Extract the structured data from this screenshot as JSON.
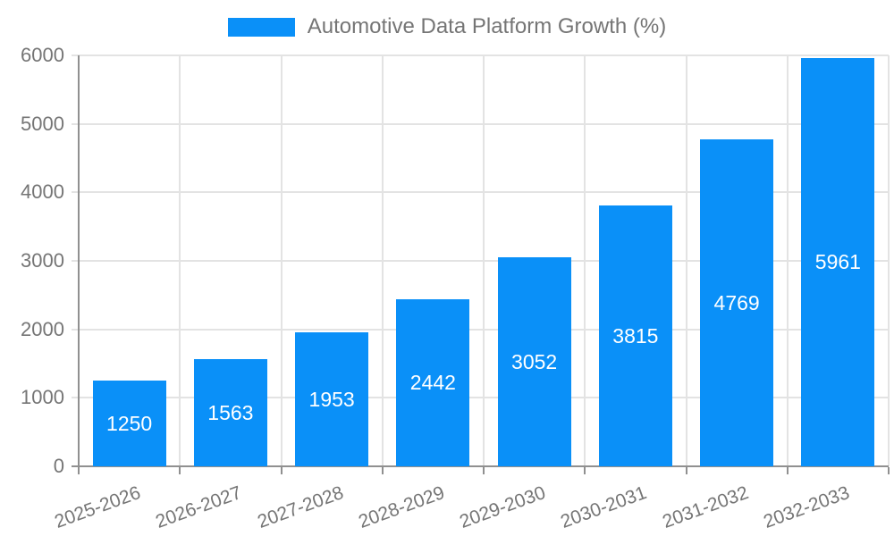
{
  "legend": {
    "label": "Automotive Data Platform Growth (%)"
  },
  "colors": {
    "bar": "#0a90f8",
    "grid": "#e3e3e3",
    "axis": "#909090",
    "axis_label": "#757575",
    "legend_text": "#757575",
    "value_label": "#ffffff",
    "background": "#ffffff"
  },
  "chart_data": {
    "type": "bar",
    "title": "Automotive Data Platform Growth (%)",
    "categories": [
      "2025-2026",
      "2026-2027",
      "2027-2028",
      "2028-2029",
      "2029-2030",
      "2030-2031",
      "2031-2032",
      "2032-2033"
    ],
    "values": [
      1250,
      1563,
      1953,
      2442,
      3052,
      3815,
      4769,
      5961
    ],
    "xlabel": "",
    "ylabel": "",
    "ylim": [
      0,
      6000
    ],
    "yticks": [
      0,
      1000,
      2000,
      3000,
      4000,
      5000,
      6000
    ],
    "grid": true,
    "legend_position": "top-center",
    "value_labels": "inside-center",
    "x_tick_rotation_deg": -20
  }
}
